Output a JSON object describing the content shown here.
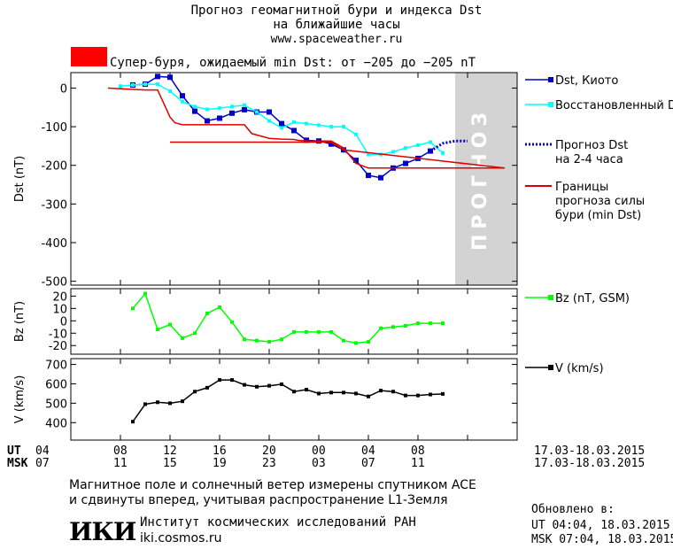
{
  "header": {
    "title_line1": "Прогноз геомагнитной бури и индекса Dst",
    "title_line2": "на ближайшие часы",
    "url": "www.spaceweather.ru",
    "storm_text": "Супер-буря, ожидаемый min Dst: от −205 до −205 nT",
    "storm_color": "#ff0000"
  },
  "chart_data": [
    {
      "type": "line",
      "ylabel": "Dst (nT)",
      "ylim": [
        -510,
        40
      ],
      "yticks": [
        0,
        -100,
        -200,
        -300,
        -400,
        -500
      ],
      "forecast_label": "ПРОГНОЗ",
      "series": [
        {
          "name": "Dst, Киото",
          "color": "#0000cc",
          "x": [
            5,
            6,
            7,
            8,
            9,
            10,
            11,
            12,
            13,
            14,
            15,
            16,
            17,
            18,
            19,
            20,
            21,
            22,
            23,
            24,
            25,
            26,
            27,
            28,
            29
          ],
          "y": [
            8,
            10,
            30,
            28,
            -20,
            -60,
            -85,
            -78,
            -65,
            -56,
            -62,
            -62,
            -92,
            -110,
            -135,
            -137,
            -145,
            -160,
            -187,
            -226,
            -232,
            -207,
            -195,
            -182,
            -163
          ]
        },
        {
          "name": "Восстановленный Dst",
          "color": "#00ffff",
          "x": [
            4,
            5,
            6,
            7,
            8,
            9,
            10,
            11,
            12,
            13,
            14,
            15,
            16,
            17,
            18,
            19,
            20,
            21,
            22,
            23,
            24,
            25,
            26,
            27,
            28,
            29,
            30
          ],
          "y": [
            5,
            8,
            10,
            10,
            -8,
            -35,
            -48,
            -55,
            -52,
            -48,
            -44,
            -62,
            -85,
            -103,
            -88,
            -92,
            -96,
            -100,
            -100,
            -120,
            -172,
            -172,
            -165,
            -155,
            -148,
            -140,
            -168
          ]
        },
        {
          "name": "Прогноз Dst\nна 2-4 часа",
          "color": "#0000cc",
          "x": [
            29,
            30,
            31,
            32
          ],
          "y": [
            -163,
            -143,
            -137,
            -137
          ]
        },
        {
          "name": "Границы\nпрогноза силы\nбури (min Dst)",
          "color": "#dd0000",
          "x": [
            3,
            6,
            7,
            8,
            8.4,
            9,
            10,
            11,
            12,
            13,
            14,
            14.6,
            16,
            17,
            18,
            18.3,
            19,
            20,
            21,
            22,
            23,
            24,
            25,
            26,
            27,
            28,
            29,
            30,
            31,
            32,
            33,
            34,
            35
          ],
          "y": [
            0,
            -5,
            -5,
            -75,
            -90,
            -95,
            -95,
            -95,
            -95,
            -95,
            -95,
            -118,
            -130,
            -132,
            -133,
            -135,
            -137,
            -137,
            -137,
            -155,
            -195,
            -207,
            -207,
            -207,
            -207,
            -207,
            -207,
            -207,
            -207,
            -207,
            -207,
            -207,
            -207
          ],
          "lower": {
            "x": [
              8,
              21,
              22,
              35
            ],
            "y": [
              -140,
              -140,
              -160,
              -207
            ]
          }
        }
      ]
    },
    {
      "type": "line",
      "ylabel": "Bz (nT)",
      "ylim": [
        -27,
        26
      ],
      "yticks": [
        20,
        10,
        0,
        -10,
        -20
      ],
      "series": [
        {
          "name": "Bz (nT, GSM)",
          "color": "#00ff00",
          "x": [
            5,
            6,
            7,
            8,
            9,
            10,
            11,
            12,
            13,
            14,
            15,
            16,
            17,
            18,
            19,
            20,
            21,
            22,
            23,
            24,
            25,
            26,
            27,
            28,
            29,
            30
          ],
          "y": [
            10,
            22,
            -7,
            -3,
            -14,
            -10,
            6,
            11,
            -1,
            -15,
            -16,
            -17,
            -15,
            -9,
            -9,
            -9,
            -9,
            -16,
            -18,
            -17,
            -6,
            -5,
            -4,
            -2,
            -2,
            -2
          ]
        }
      ]
    },
    {
      "type": "line",
      "ylabel": "V (km/s)",
      "ylim": [
        310,
        730
      ],
      "yticks": [
        700,
        600,
        500,
        400
      ],
      "series": [
        {
          "name": "V (km/s)",
          "color": "#000000",
          "x": [
            5,
            6,
            7,
            8,
            9,
            10,
            11,
            12,
            13,
            14,
            15,
            16,
            17,
            18,
            19,
            20,
            21,
            22,
            23,
            24,
            25,
            26,
            27,
            28,
            29,
            30
          ],
          "y": [
            405,
            495,
            505,
            500,
            510,
            560,
            580,
            620,
            620,
            595,
            585,
            590,
            598,
            560,
            570,
            550,
            555,
            555,
            550,
            535,
            565,
            560,
            540,
            540,
            545,
            548
          ]
        }
      ]
    }
  ],
  "x_axis": {
    "ut_label": "UT",
    "msk_label": "MSK",
    "ut_ticks": [
      "04",
      "08",
      "12",
      "16",
      "20",
      "00",
      "04",
      "08"
    ],
    "msk_ticks": [
      "07",
      "11",
      "15",
      "19",
      "23",
      "03",
      "07",
      "11"
    ],
    "date_range": "17.03-18.03.2015"
  },
  "footer": {
    "note_line1": "Магнитное поле и солнечный ветер измерены спутником ACE",
    "note_line2": "и сдвинуты вперед, учитывая распространение L1-Земля",
    "logo": "ИКИ",
    "institute": "Институт космических исследований РАН",
    "institute_url": "iki.cosmos.ru",
    "updated_label": "Обновлено в:",
    "updated_ut": "UT  04:04, 18.03.2015",
    "updated_msk": "MSK 07:04, 18.03.2015"
  }
}
